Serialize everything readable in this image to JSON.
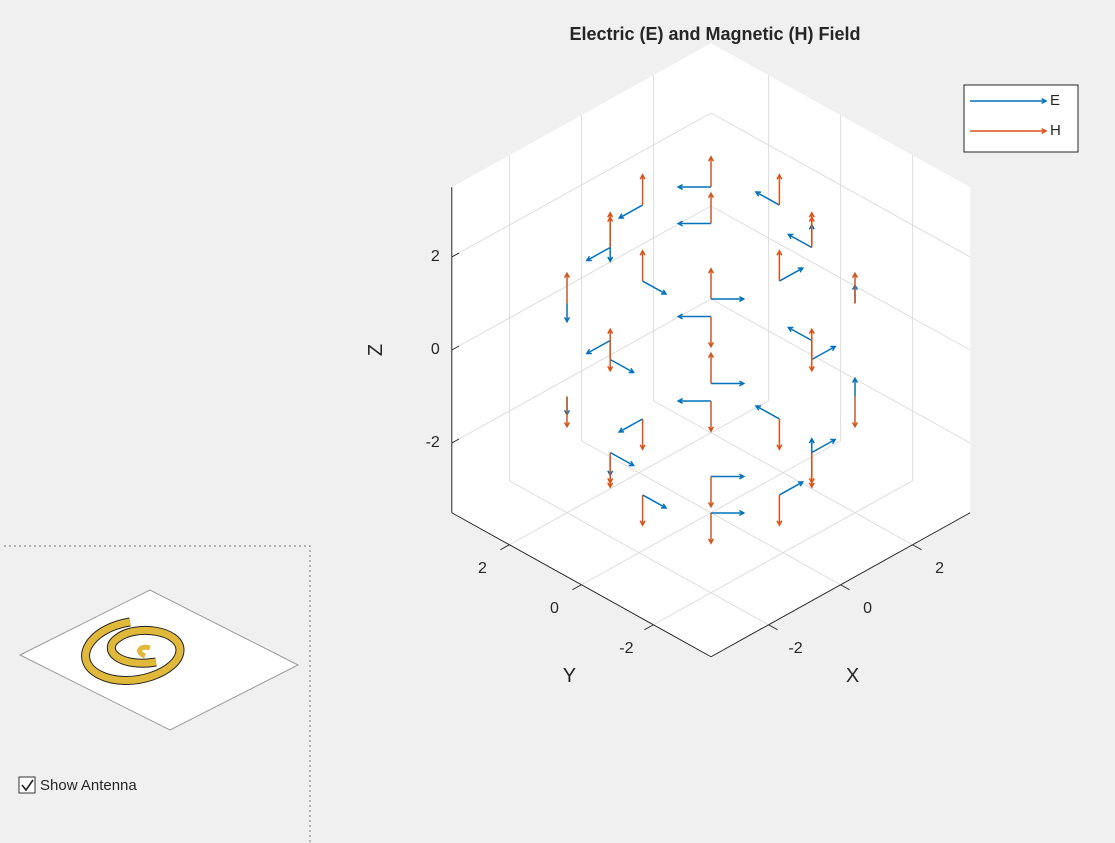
{
  "chart_data": {
    "type": "quiver3",
    "title": "Electric (E) and Magnetic (H) Field",
    "xlabel": "X",
    "ylabel": "Y",
    "zlabel": "Z",
    "xlim": [
      -3.6,
      3.6
    ],
    "ylim": [
      -3.6,
      3.6
    ],
    "zlim": [
      -3.5,
      3.5
    ],
    "xticks": [
      -2,
      0,
      2
    ],
    "yticks": [
      -2,
      0,
      2
    ],
    "zticks": [
      -2,
      0,
      2
    ],
    "grid": true,
    "legend": "upper right",
    "x": [
      1.9,
      1.4,
      0,
      -1.4,
      -1.9,
      -1.4,
      0,
      1.4,
      2.8,
      2,
      0,
      -2,
      -2.8,
      -2,
      0,
      2,
      2.8,
      2,
      0,
      -2,
      -2.8,
      -2,
      0,
      2,
      1.9,
      1.4,
      0,
      -1.4,
      -1.9,
      -1.4,
      0,
      1.4
    ],
    "y": [
      0,
      1.4,
      1.9,
      1.4,
      0,
      -1.4,
      -1.9,
      -1.4,
      0,
      2,
      2.8,
      2,
      0,
      -2,
      -2.8,
      -2,
      0,
      2,
      2.8,
      2,
      0,
      -2,
      -2.8,
      -2,
      0,
      1.4,
      1.9,
      1.4,
      0,
      -1.4,
      -1.9,
      -1.4
    ],
    "z": [
      2.3,
      2.3,
      2.3,
      2.3,
      2.3,
      2.3,
      2.3,
      2.3,
      1,
      1,
      1,
      1,
      1,
      1,
      1,
      1,
      -1,
      -1,
      -1,
      -1,
      -1,
      -1,
      -1,
      -1,
      -2.3,
      -2.3,
      -2.3,
      -2.3,
      -2.3,
      -2.3,
      -2.3,
      -2.3
    ],
    "series": [
      {
        "name": "E",
        "color": "#0072bd",
        "u": [
          0,
          -0.35,
          -0.5,
          -0.35,
          0,
          0.35,
          0.5,
          0.35,
          0,
          -0.35,
          -0.5,
          -0.35,
          0,
          0.35,
          0.5,
          0.35,
          0,
          -0.35,
          -0.5,
          -0.35,
          0,
          0.35,
          0.5,
          0.35,
          0,
          -0.35,
          -0.5,
          -0.35,
          0,
          0.35,
          0.5,
          0.35
        ],
        "v": [
          0.5,
          0.35,
          0,
          -0.35,
          -0.5,
          -0.35,
          0,
          0.35,
          0.5,
          0.35,
          0,
          -0.35,
          -0.5,
          -0.35,
          0,
          0.35,
          0.5,
          0.35,
          0,
          -0.35,
          -0.5,
          -0.35,
          0,
          0.35,
          0.5,
          0.35,
          0,
          -0.35,
          -0.5,
          -0.35,
          0,
          0.35
        ],
        "w": [
          0,
          0,
          0,
          0,
          0,
          0,
          0,
          0,
          0,
          0,
          0,
          0,
          0,
          0,
          0,
          0,
          0,
          0,
          0,
          0,
          0,
          0,
          0,
          0,
          0,
          0,
          0,
          0,
          0,
          0,
          0,
          0
        ]
      },
      {
        "name": "H",
        "color": "#d95319",
        "u": [
          0,
          0,
          0,
          0,
          0,
          0,
          0,
          0,
          0,
          0,
          0,
          0,
          0,
          0,
          0,
          0,
          0,
          0,
          0,
          0,
          0,
          0,
          0,
          0,
          0,
          0,
          0,
          0,
          0,
          0,
          0,
          0
        ],
        "v": [
          0,
          0,
          0,
          0,
          0,
          0,
          0,
          0,
          0,
          0,
          0,
          0,
          0,
          0,
          0,
          0,
          0,
          0,
          0,
          0,
          0,
          0,
          0,
          0,
          0,
          0,
          0,
          0,
          0,
          0,
          0,
          0
        ],
        "w": [
          0.5,
          0.5,
          0.5,
          0.5,
          0.5,
          0.5,
          0.5,
          0.5,
          0.5,
          0.5,
          0.5,
          0.5,
          0.5,
          0.5,
          0.5,
          0.5,
          -0.5,
          -0.5,
          -0.5,
          -0.5,
          -0.5,
          -0.5,
          -0.5,
          -0.5,
          -0.5,
          -0.5,
          -0.5,
          -0.5,
          -0.5,
          -0.5,
          -0.5,
          -0.5
        ]
      }
    ]
  },
  "panel": {
    "checkbox_label": "Show Antenna",
    "checked": true
  }
}
